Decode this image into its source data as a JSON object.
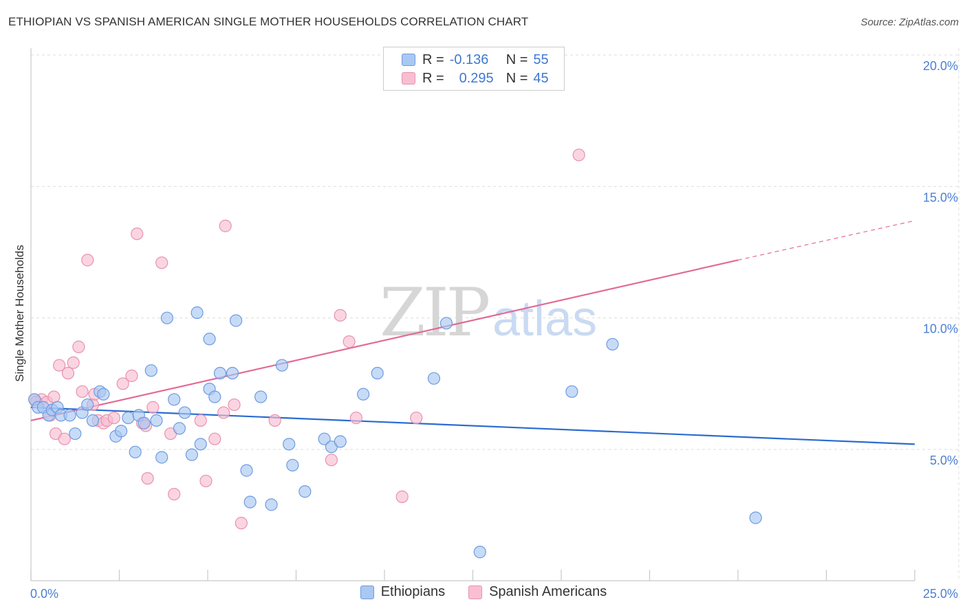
{
  "header": {
    "title": "ETHIOPIAN VS SPANISH AMERICAN SINGLE MOTHER HOUSEHOLDS CORRELATION CHART",
    "source": "Source: ZipAtlas.com"
  },
  "legend": {
    "rows": [
      {
        "r_label": "R =",
        "r_value": "-0.136",
        "n_label": "N =",
        "n_value": "55"
      },
      {
        "r_label": "R =",
        "r_value": "0.295",
        "n_label": "N =",
        "n_value": "45"
      }
    ]
  },
  "watermark": {
    "zip": "ZIP",
    "atlas": "atlas"
  },
  "colors": {
    "ethiopians_fill": "#a9c8f2",
    "ethiopians_stroke": "#6d9be0",
    "ethiopians_line": "#2a6bd0",
    "spanish_fill": "#f7bfd1",
    "spanish_stroke": "#e891af",
    "spanish_line": "#e36a96",
    "tick_text": "#4a7fd4",
    "grid": "#dddddd"
  },
  "chart_data": {
    "type": "scatter",
    "title": "ETHIOPIAN VS SPANISH AMERICAN SINGLE MOTHER HOUSEHOLDS CORRELATION CHART",
    "xlabel": "",
    "ylabel": "Single Mother Households",
    "xlim": [
      0,
      25
    ],
    "ylim": [
      0,
      20.5
    ],
    "x_tick_labels": [
      "0.0%",
      "25.0%"
    ],
    "y_ticks": [
      5,
      10,
      15,
      20
    ],
    "y_tick_labels": [
      "5.0%",
      "10.0%",
      "15.0%",
      "20.0%"
    ],
    "grid": true,
    "legend_position": "top-center",
    "series": [
      {
        "name": "Ethiopians",
        "r": -0.136,
        "n": 55,
        "trend": {
          "x0": 0,
          "y0": 6.6,
          "x1": 25,
          "y1": 5.2
        },
        "points": [
          [
            0.1,
            6.9
          ],
          [
            0.2,
            6.6
          ],
          [
            0.35,
            6.6
          ],
          [
            0.5,
            6.3
          ],
          [
            0.6,
            6.5
          ],
          [
            0.75,
            6.6
          ],
          [
            0.85,
            6.3
          ],
          [
            1.1,
            6.3
          ],
          [
            1.25,
            5.6
          ],
          [
            1.45,
            6.4
          ],
          [
            1.6,
            6.7
          ],
          [
            1.75,
            6.1
          ],
          [
            1.95,
            7.2
          ],
          [
            2.05,
            7.1
          ],
          [
            2.4,
            5.5
          ],
          [
            2.55,
            5.7
          ],
          [
            2.75,
            6.2
          ],
          [
            2.95,
            4.9
          ],
          [
            3.05,
            6.3
          ],
          [
            3.2,
            6.0
          ],
          [
            3.4,
            8.0
          ],
          [
            3.55,
            6.1
          ],
          [
            3.7,
            4.7
          ],
          [
            3.85,
            10.0
          ],
          [
            4.05,
            6.9
          ],
          [
            4.2,
            5.8
          ],
          [
            4.35,
            6.4
          ],
          [
            4.55,
            4.8
          ],
          [
            4.7,
            10.2
          ],
          [
            4.8,
            5.2
          ],
          [
            5.05,
            9.2
          ],
          [
            5.05,
            7.3
          ],
          [
            5.2,
            7.0
          ],
          [
            5.35,
            7.9
          ],
          [
            5.7,
            7.9
          ],
          [
            5.8,
            9.9
          ],
          [
            6.1,
            4.2
          ],
          [
            6.2,
            3.0
          ],
          [
            6.5,
            7.0
          ],
          [
            6.8,
            2.9
          ],
          [
            7.1,
            8.2
          ],
          [
            7.3,
            5.2
          ],
          [
            7.4,
            4.4
          ],
          [
            7.75,
            3.4
          ],
          [
            8.3,
            5.4
          ],
          [
            8.5,
            5.1
          ],
          [
            8.75,
            5.3
          ],
          [
            9.4,
            7.1
          ],
          [
            9.8,
            7.9
          ],
          [
            11.4,
            7.7
          ],
          [
            11.75,
            9.8
          ],
          [
            12.7,
            1.1
          ],
          [
            15.3,
            7.2
          ],
          [
            16.45,
            9.0
          ],
          [
            20.5,
            2.4
          ]
        ]
      },
      {
        "name": "Spanish Americans",
        "r": 0.295,
        "n": 45,
        "trend": {
          "x0": 0,
          "y0": 6.1,
          "x1": 20,
          "y1": 12.2,
          "dash_to_x": 25,
          "dash_to_y": 13.7
        },
        "points": [
          [
            0.1,
            6.9
          ],
          [
            0.3,
            6.9
          ],
          [
            0.45,
            6.8
          ],
          [
            0.55,
            6.3
          ],
          [
            0.65,
            7.0
          ],
          [
            0.7,
            5.6
          ],
          [
            0.8,
            8.2
          ],
          [
            0.95,
            5.4
          ],
          [
            1.05,
            7.9
          ],
          [
            1.2,
            8.3
          ],
          [
            1.35,
            8.9
          ],
          [
            1.45,
            7.2
          ],
          [
            1.6,
            12.2
          ],
          [
            1.75,
            6.7
          ],
          [
            1.8,
            7.1
          ],
          [
            1.9,
            6.1
          ],
          [
            2.05,
            6.0
          ],
          [
            2.15,
            6.1
          ],
          [
            2.35,
            6.2
          ],
          [
            2.6,
            7.5
          ],
          [
            2.85,
            7.8
          ],
          [
            3.0,
            13.2
          ],
          [
            3.15,
            6.0
          ],
          [
            3.25,
            5.9
          ],
          [
            3.3,
            3.9
          ],
          [
            3.45,
            6.6
          ],
          [
            3.7,
            12.1
          ],
          [
            3.95,
            5.6
          ],
          [
            4.05,
            3.3
          ],
          [
            4.8,
            6.1
          ],
          [
            4.95,
            3.8
          ],
          [
            5.2,
            5.4
          ],
          [
            5.45,
            6.4
          ],
          [
            5.5,
            13.5
          ],
          [
            5.75,
            6.7
          ],
          [
            5.95,
            2.2
          ],
          [
            6.9,
            6.1
          ],
          [
            8.5,
            4.6
          ],
          [
            8.75,
            10.1
          ],
          [
            9.0,
            9.1
          ],
          [
            9.2,
            6.2
          ],
          [
            10.5,
            3.2
          ],
          [
            10.9,
            6.2
          ],
          [
            15.5,
            16.2
          ],
          [
            0.15,
            6.8
          ]
        ]
      }
    ]
  }
}
